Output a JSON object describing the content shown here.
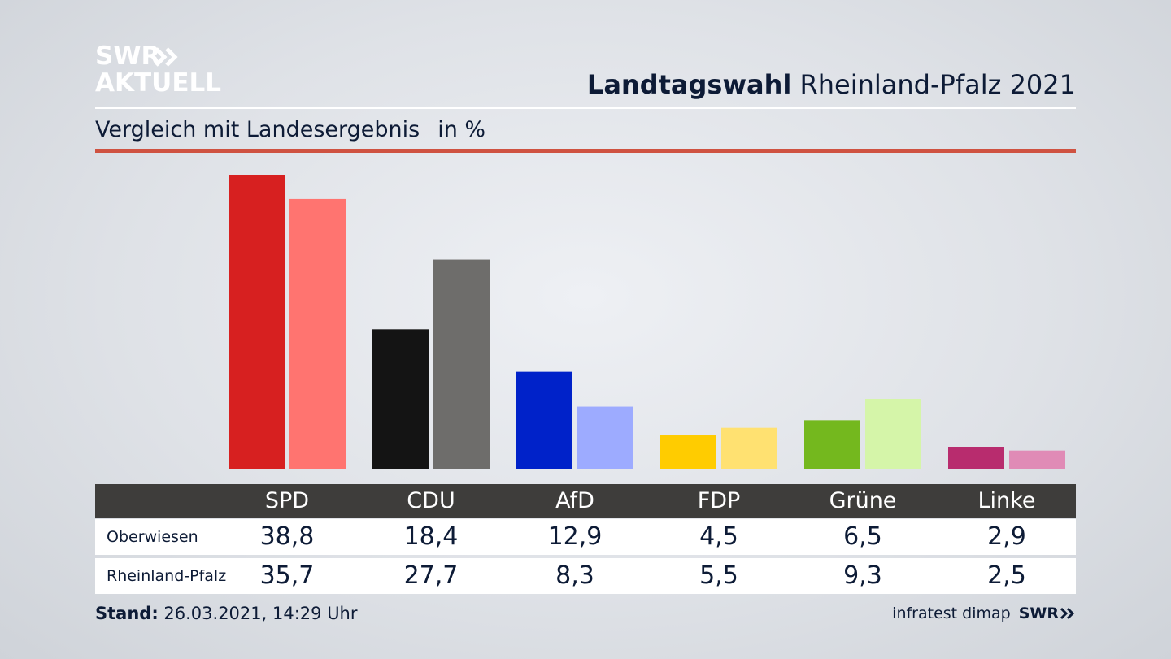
{
  "header": {
    "logo_line1": "SWR",
    "logo_line2": "AKTUELL",
    "title_bold": "Landtagswahl",
    "title_rest": "Rheinland-Pfalz 2021",
    "subtitle": "Vergleich mit Landesergebnis",
    "unit": "in %"
  },
  "chart_data": {
    "type": "bar",
    "title": "Vergleich mit Landesergebnis",
    "categories": [
      "SPD",
      "CDU",
      "AfD",
      "FDP",
      "Grüne",
      "Linke"
    ],
    "series": [
      {
        "name": "Oberwiesen",
        "values": [
          38.8,
          18.4,
          12.9,
          4.5,
          6.5,
          2.9
        ],
        "labels": [
          "38,8",
          "18,4",
          "12,9",
          "4,5",
          "6,5",
          "2,9"
        ]
      },
      {
        "name": "Rheinland-Pfalz",
        "values": [
          35.7,
          27.7,
          8.3,
          5.5,
          9.3,
          2.5
        ],
        "labels": [
          "35,7",
          "27,7",
          "8,3",
          "5,5",
          "9,3",
          "2,5"
        ]
      }
    ],
    "colors": {
      "primary": [
        "#d72020",
        "#141414",
        "#0022c9",
        "#ffcc00",
        "#74b81e",
        "#b82c6e"
      ],
      "secondary": [
        "#ff7470",
        "#6e6d6b",
        "#9dabff",
        "#ffe171",
        "#d5f5a9",
        "#e08bb6"
      ]
    },
    "ylim": [
      0,
      40
    ],
    "grid": false,
    "legend": "table-below"
  },
  "footer": {
    "stand_label": "Stand:",
    "stand_value": "26.03.2021, 14:29 Uhr",
    "source": "infratest dimap",
    "brand": "SWR"
  },
  "colors": {
    "accent_rule": "#cf5241",
    "header_bg": "#3e3d3b",
    "text": "#0d1b36"
  }
}
